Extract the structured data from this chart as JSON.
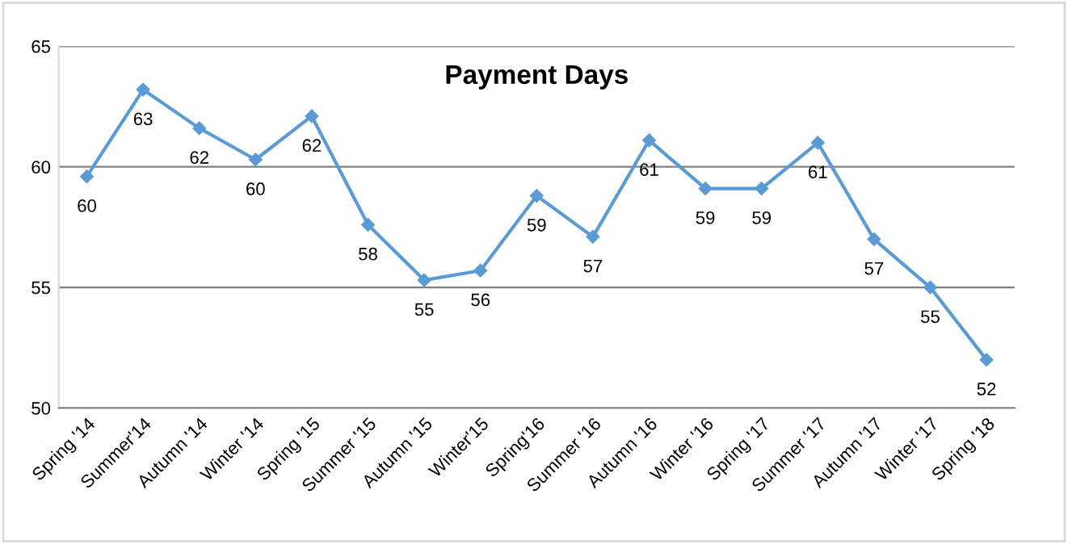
{
  "chart_data": {
    "type": "line",
    "title": "Payment Days",
    "categories": [
      "Spring '14",
      "Summer'14",
      "Autumn '14",
      "Winter '14",
      "Spring '15",
      "Summer '15",
      "Autumn '15",
      "Winter'15",
      "Spring'16",
      "Summer '16",
      "Autumn '16",
      "Winter '16",
      "Spring '17",
      "Summer '17",
      "Autumn '17",
      "Winter '17",
      "Spring '18"
    ],
    "series": [
      {
        "color": "#5b9bd5",
        "values": [
          59.6,
          63.2,
          61.6,
          60.3,
          62.1,
          57.6,
          55.3,
          55.7,
          58.8,
          57.1,
          61.1,
          59.1,
          59.1,
          61.0,
          57.0,
          55.0,
          52.0
        ],
        "value_labels": [
          "60",
          "63",
          "62",
          "60",
          "62",
          "58",
          "55",
          "56",
          "59",
          "57",
          "61",
          "59",
          "59",
          "61",
          "57",
          "55",
          "52"
        ]
      }
    ],
    "ylim": [
      50,
      65
    ],
    "yticks": [
      50,
      55,
      60,
      65
    ],
    "grid": "y",
    "marker": "diamond",
    "line_style": "solid",
    "legend": false
  }
}
